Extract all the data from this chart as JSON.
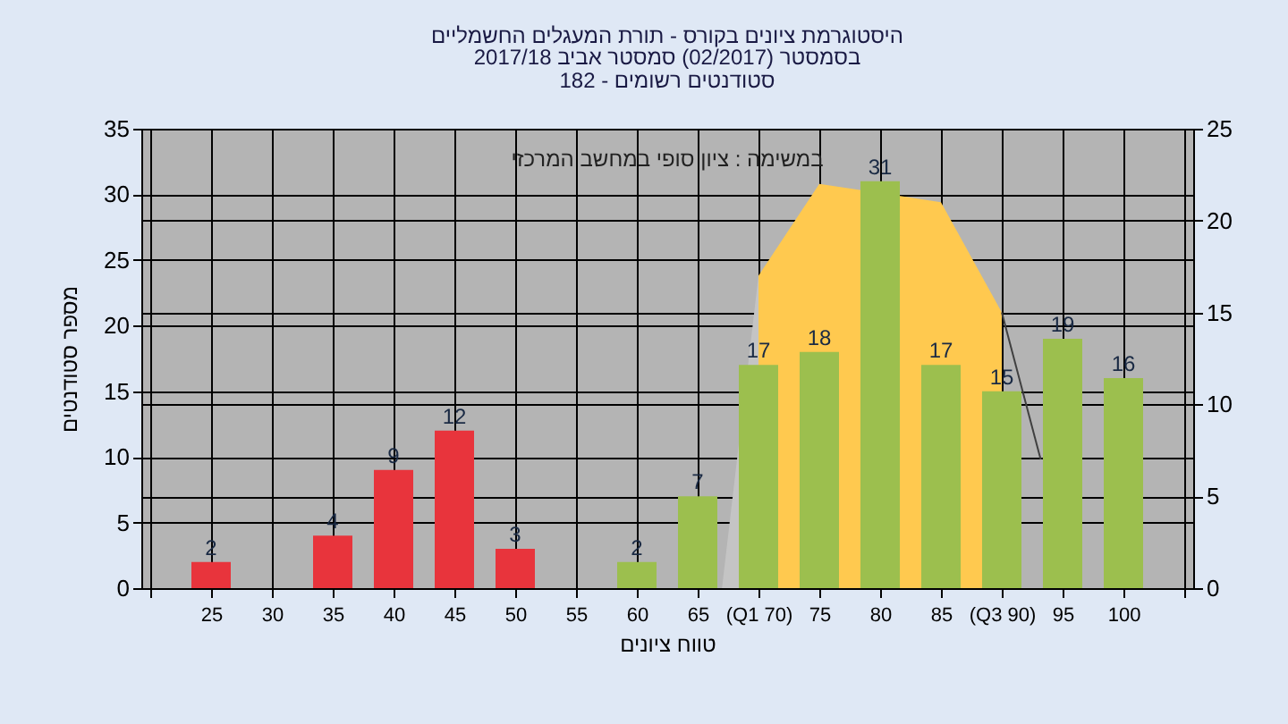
{
  "chart_data": {
    "type": "bar",
    "title": "היסטוגרמת ציונים בקורס - תורת המעגלים החשמליים",
    "subtitle": "בסמסטר  (02/2017)  סמסטר אביב 2017/18\nסטודנטים רשומים - 182",
    "xlabel": "טווח ציונים",
    "ylabel": "מספר סטודנטים",
    "annotations": [
      "במשימה : ציון סופי במחשב המרכזי"
    ],
    "xlim": [
      20,
      105
    ],
    "xticks": [
      {
        "value": 20,
        "label": null
      },
      25,
      30,
      35,
      40,
      45,
      50,
      55,
      60,
      65,
      {
        "value": 70,
        "label": "(Q1 70)"
      },
      75,
      80,
      85,
      {
        "value": 90,
        "label": "(Q3 90)"
      },
      95,
      100,
      {
        "value": 105,
        "label": null
      }
    ],
    "ylim": [
      0,
      35
    ],
    "yticks": [
      0,
      5,
      10,
      15,
      20,
      25,
      30,
      35
    ],
    "y2lim": [
      0,
      25
    ],
    "y2ticks": [
      0,
      5,
      10,
      15,
      20,
      25
    ],
    "grid": true,
    "series": [
      {
        "x": [
          25,
          35,
          40,
          45,
          50,
          60,
          65,
          70,
          75,
          80,
          85,
          90,
          95,
          100
        ],
        "values": [
          2,
          4,
          9,
          12,
          3,
          2,
          7,
          17,
          18,
          31,
          17,
          15,
          19,
          16
        ],
        "value_labels": [
          "2",
          "4",
          "9",
          "12",
          "3",
          "2",
          "7",
          "17",
          "18",
          "31",
          "17",
          "15",
          "19",
          "16"
        ],
        "colors": [
          "#e8343c",
          "#e8343c",
          "#e8343c",
          "#e8343c",
          "#e8343c",
          "#9cbf4e",
          "#9cbf4e",
          "#9cbf4e",
          "#9cbf4e",
          "#9cbf4e",
          "#9cbf4e",
          "#9cbf4e",
          "#9cbf4e",
          "#9cbf4e"
        ]
      },
      {
        "type": "area",
        "axis": "y2",
        "x": [
          67,
          70
        ],
        "values": [
          0,
          17
        ],
        "color": "#c4c4c4"
      },
      {
        "type": "area",
        "axis": "y2",
        "x": [
          70,
          75,
          85,
          90
        ],
        "values": [
          17,
          22,
          21,
          15
        ],
        "color": "#ffc94f"
      },
      {
        "type": "line",
        "axis": "y2",
        "x": [
          90,
          93.2
        ],
        "values": [
          15,
          7
        ],
        "color": "#404040"
      }
    ]
  }
}
